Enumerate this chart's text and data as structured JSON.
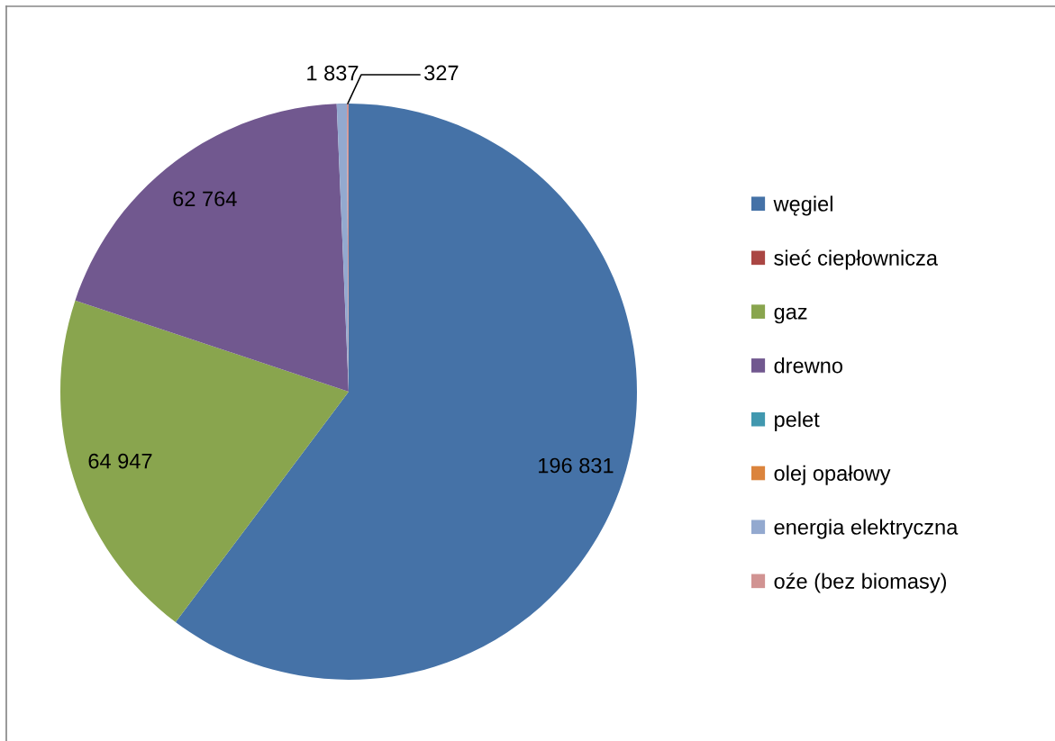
{
  "chart_data": {
    "type": "pie",
    "categories": [
      "węgiel",
      "sieć ciepłownicza",
      "gaz",
      "drewno",
      "pelet",
      "olej opałowy",
      "energia elektryczna",
      "oźe (bez biomasy)"
    ],
    "values": [
      196831,
      0,
      64947,
      62764,
      0,
      0,
      1837,
      327
    ],
    "colors": [
      "#4572a7",
      "#aa4643",
      "#89a54e",
      "#71588f",
      "#4198af",
      "#db843d",
      "#93a9cf",
      "#d19392"
    ],
    "value_labels": [
      "196 831",
      null,
      "64 947",
      "62 764",
      null,
      null,
      "1 837",
      "327"
    ],
    "legend": "right"
  }
}
